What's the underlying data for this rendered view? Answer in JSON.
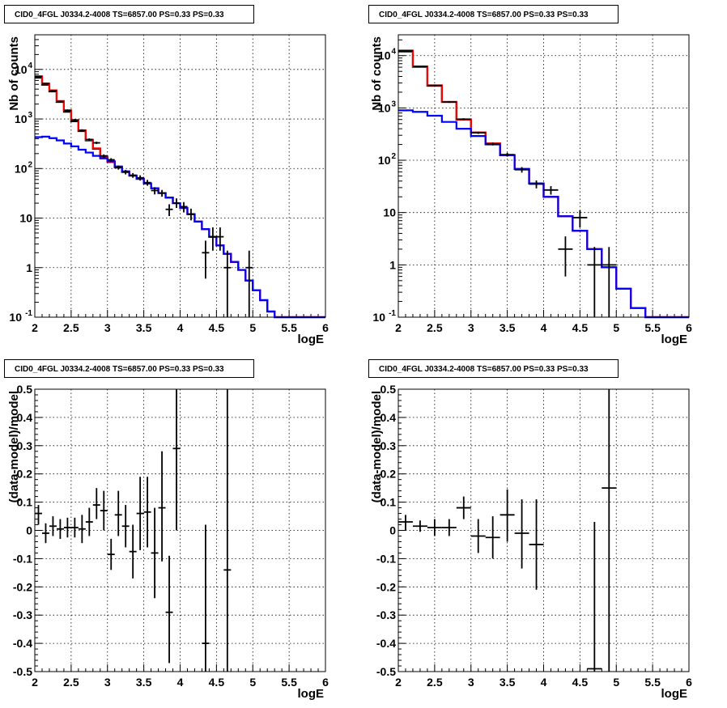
{
  "chart_data": [
    {
      "id": "top-left",
      "type": "line",
      "title": "CID0_4FGL J0334.2-4008 TS=6857.00 PS=0.33 PS=0.33",
      "xlabel": "logE",
      "ylabel": "Nb of counts",
      "xlim": [
        2,
        6
      ],
      "ylim": [
        0.1,
        50000
      ],
      "log_y": true,
      "grid": true,
      "x_ticks": [
        "2",
        "2.5",
        "3",
        "3.5",
        "4",
        "4.5",
        "5",
        "5.5",
        "6"
      ],
      "y_ticks": [
        {
          "value": 0.1,
          "label": "10",
          "exp": "-1"
        },
        {
          "value": 1,
          "label": "1",
          "exp": ""
        },
        {
          "value": 10,
          "label": "10",
          "exp": ""
        },
        {
          "value": 100,
          "label": "10",
          "exp": "2"
        },
        {
          "value": 1000,
          "label": "10",
          "exp": "3"
        },
        {
          "value": 10000,
          "label": "10",
          "exp": "4"
        }
      ],
      "bin_edges": [
        2.0,
        2.1,
        2.2,
        2.3,
        2.4,
        2.5,
        2.6,
        2.7,
        2.8,
        2.9,
        3.0,
        3.1,
        3.2,
        3.3,
        3.4,
        3.5,
        3.6,
        3.7,
        3.8,
        3.9,
        4.0,
        4.1,
        4.2,
        4.3,
        4.4,
        4.5,
        4.6,
        4.7,
        4.8,
        4.9,
        5.0,
        5.1,
        5.2,
        5.3,
        5.4,
        5.5,
        5.6,
        5.7,
        5.8,
        5.9,
        6.0
      ],
      "series": [
        {
          "color": "#000000",
          "style": "step",
          "values": [
            6800,
            4900,
            3600,
            2200,
            1400,
            900,
            570,
            370,
            250,
            170,
            135,
            105,
            85,
            72,
            62,
            50,
            40,
            32,
            26,
            20,
            16,
            12,
            8.5,
            6,
            4.2,
            2.8,
            1.9,
            1.3,
            0.9,
            0.55,
            0.35,
            0.22,
            0.13,
            0.1,
            0.1,
            0.1,
            0.1,
            0.1,
            0.1,
            0.1
          ]
        },
        {
          "color": "#ff0000",
          "style": "step",
          "values": [
            7300,
            5200,
            3800,
            2300,
            1500,
            950,
            590,
            380,
            255,
            175,
            138,
            106,
            86,
            72,
            62,
            50,
            40,
            32,
            26,
            20,
            16,
            12,
            8.5,
            6,
            4.2,
            2.8,
            1.9,
            1.3,
            0.9,
            0.55,
            0.35,
            0.22,
            0.13,
            0.1,
            0.1,
            0.1,
            0.1,
            0.1,
            0.1,
            0.1
          ]
        },
        {
          "color": "#0000ff",
          "style": "step",
          "values": [
            430,
            440,
            410,
            370,
            320,
            280,
            240,
            210,
            180,
            160,
            140,
            110,
            88,
            72,
            62,
            50,
            40,
            32,
            26,
            20,
            16,
            12,
            8.5,
            6,
            4.2,
            2.8,
            1.9,
            1.3,
            0.9,
            0.55,
            0.35,
            0.22,
            0.13,
            0.1,
            0.1,
            0.1,
            0.1,
            0.1,
            0.1,
            0.1
          ]
        }
      ],
      "points": [
        {
          "x": 2.05,
          "y": 7200,
          "ylo": 7000,
          "yhi": 7400
        },
        {
          "x": 2.15,
          "y": 5200,
          "ylo": 5050,
          "yhi": 5350
        },
        {
          "x": 2.25,
          "y": 3700,
          "ylo": 3580,
          "yhi": 3820
        },
        {
          "x": 2.35,
          "y": 2250,
          "ylo": 2160,
          "yhi": 2340
        },
        {
          "x": 2.45,
          "y": 1480,
          "ylo": 1410,
          "yhi": 1550
        },
        {
          "x": 2.55,
          "y": 950,
          "ylo": 900,
          "yhi": 1000
        },
        {
          "x": 2.65,
          "y": 590,
          "ylo": 560,
          "yhi": 620
        },
        {
          "x": 2.75,
          "y": 385,
          "ylo": 365,
          "yhi": 405
        },
        {
          "x": 2.85,
          "y": 330,
          "ylo": 312,
          "yhi": 348
        },
        {
          "x": 2.95,
          "y": 180,
          "ylo": 167,
          "yhi": 193
        },
        {
          "x": 3.05,
          "y": 150,
          "ylo": 138,
          "yhi": 162
        },
        {
          "x": 3.15,
          "y": 105,
          "ylo": 95,
          "yhi": 115
        },
        {
          "x": 3.25,
          "y": 85,
          "ylo": 76,
          "yhi": 94
        },
        {
          "x": 3.35,
          "y": 73,
          "ylo": 65,
          "yhi": 81
        },
        {
          "x": 3.45,
          "y": 65,
          "ylo": 57,
          "yhi": 73
        },
        {
          "x": 3.55,
          "y": 52,
          "ylo": 45,
          "yhi": 59
        },
        {
          "x": 3.65,
          "y": 36,
          "ylo": 30,
          "yhi": 42
        },
        {
          "x": 3.75,
          "y": 32,
          "ylo": 27,
          "yhi": 37
        },
        {
          "x": 3.85,
          "y": 15,
          "ylo": 11,
          "yhi": 19
        },
        {
          "x": 3.95,
          "y": 20,
          "ylo": 16,
          "yhi": 25
        },
        {
          "x": 4.05,
          "y": 17,
          "ylo": 13,
          "yhi": 21
        },
        {
          "x": 4.15,
          "y": 12,
          "ylo": 9,
          "yhi": 15.5
        },
        {
          "x": 4.35,
          "y": 2,
          "ylo": 0.6,
          "yhi": 3.5
        },
        {
          "x": 4.45,
          "y": 4.2,
          "ylo": 2.2,
          "yhi": 6.5
        },
        {
          "x": 4.55,
          "y": 4.2,
          "ylo": 2.2,
          "yhi": 6.5
        },
        {
          "x": 4.65,
          "y": 1,
          "ylo": 0.1,
          "yhi": 2.2
        },
        {
          "x": 4.95,
          "y": 1,
          "ylo": 0.1,
          "yhi": 2.2
        }
      ]
    },
    {
      "id": "top-right",
      "type": "line",
      "title": "CID0_4FGL J0334.2-4008 TS=6857.00 PS=0.33 PS=0.33",
      "xlabel": "logE",
      "ylabel": "Nb of counts",
      "xlim": [
        2,
        6
      ],
      "ylim": [
        0.1,
        25000
      ],
      "log_y": true,
      "grid": true,
      "x_ticks": [
        "2",
        "2.5",
        "3",
        "3.5",
        "4",
        "4.5",
        "5",
        "5.5",
        "6"
      ],
      "y_ticks": [
        {
          "value": 0.1,
          "label": "10",
          "exp": "-1"
        },
        {
          "value": 1,
          "label": "1",
          "exp": ""
        },
        {
          "value": 10,
          "label": "10",
          "exp": ""
        },
        {
          "value": 100,
          "label": "10",
          "exp": "2"
        },
        {
          "value": 1000,
          "label": "10",
          "exp": "3"
        },
        {
          "value": 10000,
          "label": "10",
          "exp": "4"
        }
      ],
      "bin_edges": [
        2.0,
        2.2,
        2.4,
        2.6,
        2.8,
        3.0,
        3.2,
        3.4,
        3.6,
        3.8,
        4.0,
        4.2,
        4.4,
        4.6,
        4.8,
        5.0,
        5.2,
        5.4,
        5.6,
        5.8,
        6.0
      ],
      "series": [
        {
          "color": "#000000",
          "style": "step",
          "values": [
            12000,
            6100,
            2650,
            1300,
            600,
            340,
            210,
            125,
            68,
            36,
            20,
            8.5,
            4.5,
            2.0,
            0.9,
            0.35,
            0.15,
            0.1,
            0.1,
            0.1
          ]
        },
        {
          "color": "#ff0000",
          "style": "step",
          "values": [
            12500,
            6200,
            2700,
            1300,
            600,
            340,
            210,
            125,
            68,
            36,
            20,
            8.5,
            4.5,
            2.0,
            0.9,
            0.35,
            0.15,
            0.1,
            0.1,
            0.1
          ]
        },
        {
          "color": "#0000ff",
          "style": "step",
          "values": [
            900,
            840,
            710,
            540,
            400,
            290,
            200,
            125,
            68,
            36,
            20,
            8.5,
            4.5,
            2.0,
            0.9,
            0.35,
            0.15,
            0.1,
            0.1,
            0.1
          ]
        }
      ],
      "points": [
        {
          "x": 2.1,
          "y": 12400,
          "ylo": 12200,
          "yhi": 12600
        },
        {
          "x": 2.3,
          "y": 6200,
          "ylo": 6080,
          "yhi": 6320
        },
        {
          "x": 2.5,
          "y": 2700,
          "ylo": 2620,
          "yhi": 2780
        },
        {
          "x": 2.7,
          "y": 1300,
          "ylo": 1250,
          "yhi": 1350
        },
        {
          "x": 2.9,
          "y": 610,
          "ylo": 585,
          "yhi": 635
        },
        {
          "x": 3.1,
          "y": 335,
          "ylo": 318,
          "yhi": 352
        },
        {
          "x": 3.3,
          "y": 205,
          "ylo": 192,
          "yhi": 218
        },
        {
          "x": 3.5,
          "y": 128,
          "ylo": 117,
          "yhi": 139
        },
        {
          "x": 3.7,
          "y": 66,
          "ylo": 58,
          "yhi": 74
        },
        {
          "x": 3.9,
          "y": 35,
          "ylo": 29,
          "yhi": 41
        },
        {
          "x": 4.1,
          "y": 27,
          "ylo": 22,
          "yhi": 32
        },
        {
          "x": 4.3,
          "y": 2,
          "ylo": 0.6,
          "yhi": 3.5
        },
        {
          "x": 4.5,
          "y": 8,
          "ylo": 5.2,
          "yhi": 11
        },
        {
          "x": 4.7,
          "y": 1,
          "ylo": 0.1,
          "yhi": 2.2
        },
        {
          "x": 4.9,
          "y": 1,
          "ylo": 0.1,
          "yhi": 2.2
        }
      ]
    },
    {
      "id": "bottom-left",
      "type": "scatter",
      "title": "CID0_4FGL J0334.2-4008 TS=6857.00 PS=0.33 PS=0.33",
      "xlabel": "logE",
      "ylabel": "(data-model)/model",
      "xlim": [
        2,
        6
      ],
      "ylim": [
        -0.5,
        0.5
      ],
      "log_y": false,
      "grid": true,
      "x_ticks": [
        "2",
        "2.5",
        "3",
        "3.5",
        "4",
        "4.5",
        "5",
        "5.5",
        "6"
      ],
      "y_ticks": [
        {
          "value": -0.5,
          "label": "-0.5",
          "exp": ""
        },
        {
          "value": -0.4,
          "label": "-0.4",
          "exp": ""
        },
        {
          "value": -0.3,
          "label": "-0.3",
          "exp": ""
        },
        {
          "value": -0.2,
          "label": "-0.2",
          "exp": ""
        },
        {
          "value": -0.1,
          "label": "-0.1",
          "exp": ""
        },
        {
          "value": 0,
          "label": "0",
          "exp": ""
        },
        {
          "value": 0.1,
          "label": "0.1",
          "exp": ""
        },
        {
          "value": 0.2,
          "label": "0.2",
          "exp": ""
        },
        {
          "value": 0.3,
          "label": "0.3",
          "exp": ""
        },
        {
          "value": 0.4,
          "label": "0.4",
          "exp": ""
        },
        {
          "value": 0.5,
          "label": "0.5",
          "exp": ""
        }
      ],
      "x_half_width": 0.05,
      "points": [
        {
          "x": 2.05,
          "y": 0.06,
          "ylo": 0.02,
          "yhi": 0.09
        },
        {
          "x": 2.15,
          "y": -0.01,
          "ylo": -0.045,
          "yhi": 0.025
        },
        {
          "x": 2.25,
          "y": 0.015,
          "ylo": -0.02,
          "yhi": 0.05
        },
        {
          "x": 2.35,
          "y": 0.005,
          "ylo": -0.03,
          "yhi": 0.04
        },
        {
          "x": 2.45,
          "y": 0.01,
          "ylo": -0.025,
          "yhi": 0.045
        },
        {
          "x": 2.55,
          "y": 0.01,
          "ylo": -0.025,
          "yhi": 0.045
        },
        {
          "x": 2.65,
          "y": 0.005,
          "ylo": -0.045,
          "yhi": 0.055
        },
        {
          "x": 2.75,
          "y": 0.03,
          "ylo": -0.02,
          "yhi": 0.08
        },
        {
          "x": 2.85,
          "y": 0.09,
          "ylo": 0.04,
          "yhi": 0.15
        },
        {
          "x": 2.95,
          "y": 0.07,
          "ylo": 0.0,
          "yhi": 0.14
        },
        {
          "x": 3.05,
          "y": -0.085,
          "ylo": -0.14,
          "yhi": -0.03
        },
        {
          "x": 3.15,
          "y": 0.055,
          "ylo": -0.02,
          "yhi": 0.14
        },
        {
          "x": 3.25,
          "y": 0.015,
          "ylo": -0.06,
          "yhi": 0.09
        },
        {
          "x": 3.35,
          "y": -0.075,
          "ylo": -0.17,
          "yhi": 0.02
        },
        {
          "x": 3.45,
          "y": 0.06,
          "ylo": -0.07,
          "yhi": 0.19
        },
        {
          "x": 3.55,
          "y": 0.065,
          "ylo": -0.06,
          "yhi": 0.19
        },
        {
          "x": 3.65,
          "y": -0.08,
          "ylo": -0.24,
          "yhi": 0.08
        },
        {
          "x": 3.75,
          "y": 0.08,
          "ylo": -0.11,
          "yhi": 0.28
        },
        {
          "x": 3.85,
          "y": -0.29,
          "ylo": -0.47,
          "yhi": -0.09
        },
        {
          "x": 3.95,
          "y": 0.29,
          "ylo": 0.0,
          "yhi": 0.5
        },
        {
          "x": 4.35,
          "y": -0.4,
          "ylo": -0.5,
          "yhi": 0.02
        },
        {
          "x": 4.65,
          "y": -0.14,
          "ylo": -0.5,
          "yhi": 0.5
        }
      ]
    },
    {
      "id": "bottom-right",
      "type": "scatter",
      "title": "CID0_4FGL J0334.2-4008 TS=6857.00 PS=0.33 PS=0.33",
      "xlabel": "logE",
      "ylabel": "(data-model)/model",
      "xlim": [
        2,
        6
      ],
      "ylim": [
        -0.5,
        0.5
      ],
      "log_y": false,
      "grid": true,
      "x_ticks": [
        "2",
        "2.5",
        "3",
        "3.5",
        "4",
        "4.5",
        "5",
        "5.5",
        "6"
      ],
      "y_ticks": [
        {
          "value": -0.5,
          "label": "-0.5",
          "exp": ""
        },
        {
          "value": -0.4,
          "label": "-0.4",
          "exp": ""
        },
        {
          "value": -0.3,
          "label": "-0.3",
          "exp": ""
        },
        {
          "value": -0.2,
          "label": "-0.2",
          "exp": ""
        },
        {
          "value": -0.1,
          "label": "-0.1",
          "exp": ""
        },
        {
          "value": 0,
          "label": "0",
          "exp": ""
        },
        {
          "value": 0.1,
          "label": "0.1",
          "exp": ""
        },
        {
          "value": 0.2,
          "label": "0.2",
          "exp": ""
        },
        {
          "value": 0.3,
          "label": "0.3",
          "exp": ""
        },
        {
          "value": 0.4,
          "label": "0.4",
          "exp": ""
        },
        {
          "value": 0.5,
          "label": "0.5",
          "exp": ""
        }
      ],
      "x_half_width": 0.1,
      "points": [
        {
          "x": 2.1,
          "y": 0.03,
          "ylo": 0.0,
          "yhi": 0.055
        },
        {
          "x": 2.3,
          "y": 0.015,
          "ylo": -0.005,
          "yhi": 0.035
        },
        {
          "x": 2.5,
          "y": 0.01,
          "ylo": -0.02,
          "yhi": 0.04
        },
        {
          "x": 2.7,
          "y": 0.01,
          "ylo": -0.02,
          "yhi": 0.04
        },
        {
          "x": 2.9,
          "y": 0.08,
          "ylo": 0.04,
          "yhi": 0.12
        },
        {
          "x": 3.1,
          "y": -0.02,
          "ylo": -0.08,
          "yhi": 0.04
        },
        {
          "x": 3.3,
          "y": -0.025,
          "ylo": -0.1,
          "yhi": 0.05
        },
        {
          "x": 3.5,
          "y": 0.055,
          "ylo": -0.04,
          "yhi": 0.145
        },
        {
          "x": 3.7,
          "y": -0.01,
          "ylo": -0.135,
          "yhi": 0.11
        },
        {
          "x": 3.9,
          "y": -0.05,
          "ylo": -0.21,
          "yhi": 0.11
        },
        {
          "x": 4.7,
          "y": -0.49,
          "ylo": -0.5,
          "yhi": 0.03
        },
        {
          "x": 4.9,
          "y": 0.15,
          "ylo": -0.5,
          "yhi": 0.5
        }
      ]
    }
  ]
}
